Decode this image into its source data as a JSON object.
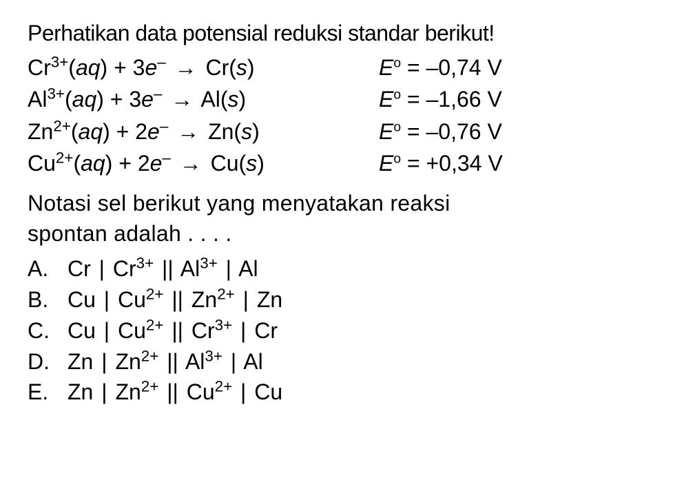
{
  "title": "Perhatikan data potensial reduksi standar berikut!",
  "equations": [
    {
      "species": "Cr",
      "charge": "3+",
      "electrons": "3",
      "product": "Cr",
      "potential": "–0,74 V"
    },
    {
      "species": "Al",
      "charge": "3+",
      "electrons": "3",
      "product": "Al",
      "potential": "–1,66 V"
    },
    {
      "species": "Zn",
      "charge": "2+",
      "electrons": "2",
      "product": "Zn",
      "potential": "–0,76 V"
    },
    {
      "species": "Cu",
      "charge": "2+",
      "electrons": "2",
      "product": "Cu",
      "potential": "+0,34 V"
    }
  ],
  "question_line1": "Notasi sel berikut yang menyatakan reaksi",
  "question_line2": "spontan adalah . . . .",
  "options": [
    {
      "label": "A.",
      "m1": "Cr",
      "i1": "Cr",
      "c1": "3+",
      "i2": "Al",
      "c2": "3+",
      "m2": "Al"
    },
    {
      "label": "B.",
      "m1": "Cu",
      "i1": "Cu",
      "c1": "2+",
      "i2": "Zn",
      "c2": "2+",
      "m2": "Zn"
    },
    {
      "label": "C.",
      "m1": "Cu",
      "i1": "Cu",
      "c1": "2+",
      "i2": "Cr",
      "c2": "3+",
      "m2": "Cr"
    },
    {
      "label": "D.",
      "m1": "Zn",
      "i1": "Zn",
      "c1": "2+",
      "i2": "Al",
      "c2": "3+",
      "m2": "Al"
    },
    {
      "label": "E.",
      "m1": "Zn",
      "i1": "Zn",
      "c1": "2+",
      "i2": "Cu",
      "c2": "2+",
      "m2": "Cu"
    }
  ],
  "symbols": {
    "aq": "aq",
    "s": "s",
    "e": "e",
    "minus": "–",
    "arrow": "→",
    "E": "E",
    "eq": "=",
    "pipe": "|",
    "dpipe": "||"
  },
  "colors": {
    "text": "#000000",
    "background": "#ffffff"
  },
  "fonts": {
    "body_size": 32,
    "family": "Arial"
  }
}
